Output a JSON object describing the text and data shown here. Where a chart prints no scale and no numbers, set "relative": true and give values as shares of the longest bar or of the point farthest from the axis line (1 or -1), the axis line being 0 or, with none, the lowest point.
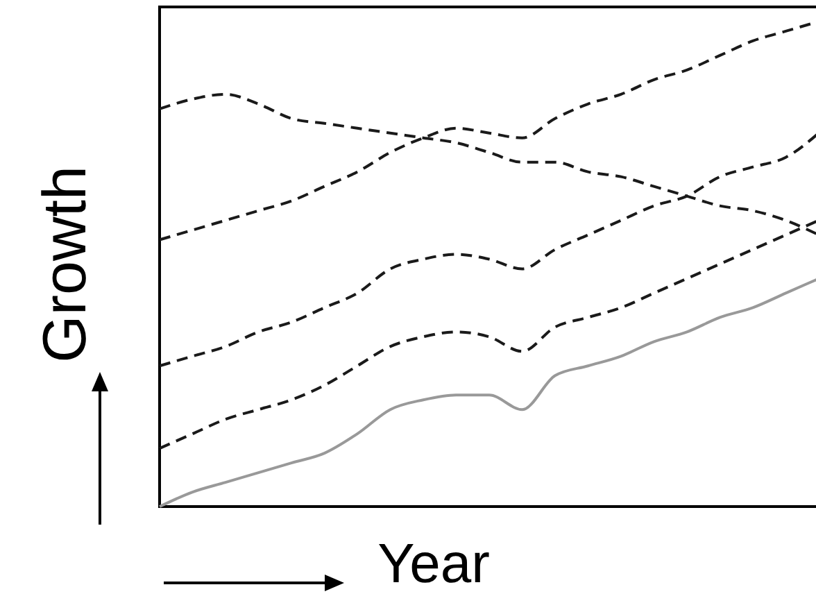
{
  "chart_data": {
    "type": "line",
    "relative": true,
    "xlabel": "Year",
    "ylabel": "Growth",
    "categories": [
      null,
      null,
      null,
      null,
      null,
      null,
      null,
      null,
      null,
      null,
      null,
      null,
      null,
      null,
      null,
      null,
      null,
      null,
      null,
      null,
      null
    ],
    "series": [
      {
        "color": "#1a1a1a",
        "line_style": "dashed",
        "values": [
          0.82,
          0.84,
          0.85,
          0.83,
          0.8,
          0.79,
          0.78,
          0.77,
          0.76,
          0.75,
          0.73,
          0.71,
          0.71,
          0.69,
          0.68,
          0.66,
          0.64,
          0.62,
          0.61,
          0.59,
          0.56
        ]
      },
      {
        "color": "#1a1a1a",
        "line_style": "dashed",
        "values": [
          0.55,
          0.57,
          0.59,
          0.61,
          0.63,
          0.66,
          0.69,
          0.73,
          0.76,
          0.78,
          0.77,
          0.76,
          0.8,
          0.83,
          0.85,
          0.88,
          0.9,
          0.93,
          0.96,
          0.98,
          1
        ]
      },
      {
        "color": "#1a1a1a",
        "line_style": "dashed",
        "values": [
          0.29,
          0.31,
          0.33,
          0.36,
          0.38,
          0.41,
          0.44,
          0.49,
          0.51,
          0.52,
          0.51,
          0.49,
          0.53,
          0.56,
          0.59,
          0.62,
          0.64,
          0.68,
          0.7,
          0.72,
          0.77
        ]
      },
      {
        "color": "#1a1a1a",
        "line_style": "dashed",
        "values": [
          0.12,
          0.15,
          0.18,
          0.2,
          0.22,
          0.25,
          0.29,
          0.33,
          0.35,
          0.36,
          0.35,
          0.32,
          0.37,
          0.39,
          0.41,
          0.44,
          0.47,
          0.5,
          0.53,
          0.56,
          0.59
        ]
      },
      {
        "color": "#999999",
        "line_style": "solid",
        "values": [
          0,
          0.03,
          0.05,
          0.07,
          0.09,
          0.11,
          0.15,
          0.2,
          0.22,
          0.23,
          0.23,
          0.2,
          0.27,
          0.29,
          0.31,
          0.34,
          0.36,
          0.39,
          0.41,
          0.44,
          0.47
        ]
      }
    ]
  }
}
